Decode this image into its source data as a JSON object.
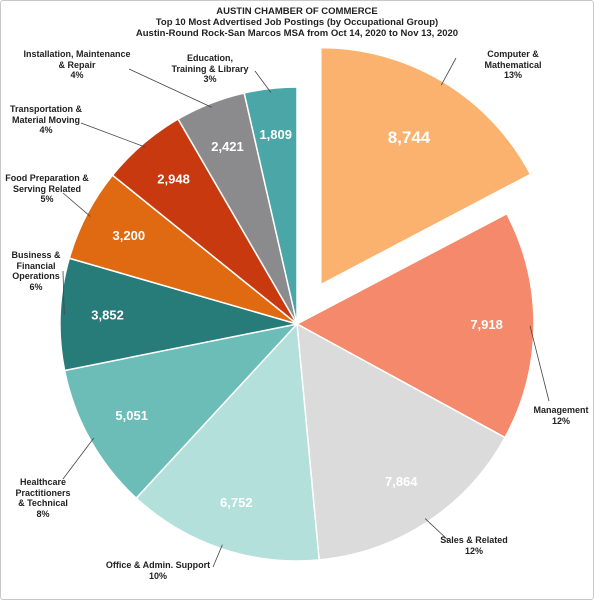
{
  "chart_data": {
    "type": "pie",
    "title": "AUSTIN CHAMBER OF COMMERCE",
    "subtitle": [
      "Top 10 Most Advertised Job Postings (by Occupational Group)",
      "Austin-Round Rock-San Marcos MSA from Oct 14, 2020 to Nov 13, 2020"
    ],
    "categories": [
      "Computer & Mathematical",
      "Management",
      "Sales & Related",
      "Office & Admin.  Support",
      "Healthcare\nPractitioners\n& Technical",
      "Business &\nFinancial\nOperations",
      "Food Preparation &\nServing Related",
      "Transportation &\nMaterial Moving",
      "Installation, Maintenance\n& Repair",
      "Education,\nTraining & Library"
    ],
    "values": [
      8744,
      7918,
      7864,
      6752,
      5051,
      3852,
      3200,
      2948,
      2421,
      1809
    ],
    "value_labels": [
      "8,744",
      "7,918",
      "7,864",
      "6,752",
      "5,051",
      "3,852",
      "3,200",
      "2,948",
      "2,421",
      "1,809"
    ],
    "shares": [
      "13%",
      "12%",
      "12%",
      "10%",
      "8%",
      "6%",
      "5%",
      "4%",
      "4%",
      "3%"
    ],
    "colors": [
      "#fbb26f",
      "#f4896b",
      "#dcdbdc",
      "#b4e0dc",
      "#6cbcb8",
      "#277b78",
      "#df6a12",
      "#c8390f",
      "#8b8a8d",
      "#4aa6a7"
    ],
    "exploded": [
      true,
      false,
      false,
      false,
      false,
      false,
      false,
      false,
      false,
      false
    ]
  }
}
